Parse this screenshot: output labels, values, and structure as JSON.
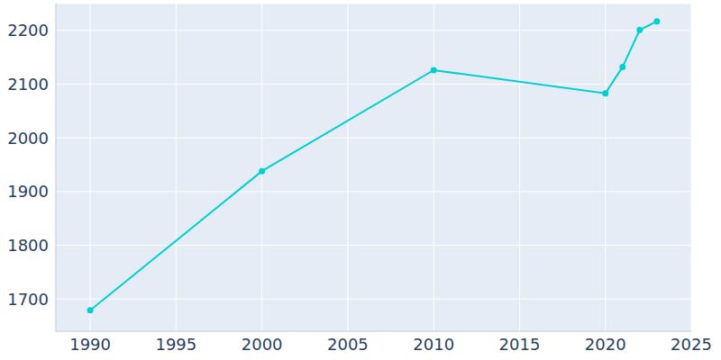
{
  "chart_data": {
    "type": "line",
    "x": [
      1990,
      2000,
      2010,
      2020,
      2021,
      2022,
      2023
    ],
    "values": [
      1679,
      1938,
      2126,
      2083,
      2132,
      2201,
      2217
    ],
    "color": "#00cfd1",
    "marker": "circle",
    "xlim": [
      1988,
      2025
    ],
    "xticks": [
      1990,
      1995,
      2000,
      2005,
      2010,
      2015,
      2020,
      2025
    ],
    "ylim": [
      1640,
      2250
    ],
    "yticks": [
      1700,
      1800,
      1900,
      2000,
      2100,
      2200
    ],
    "grid": true
  }
}
